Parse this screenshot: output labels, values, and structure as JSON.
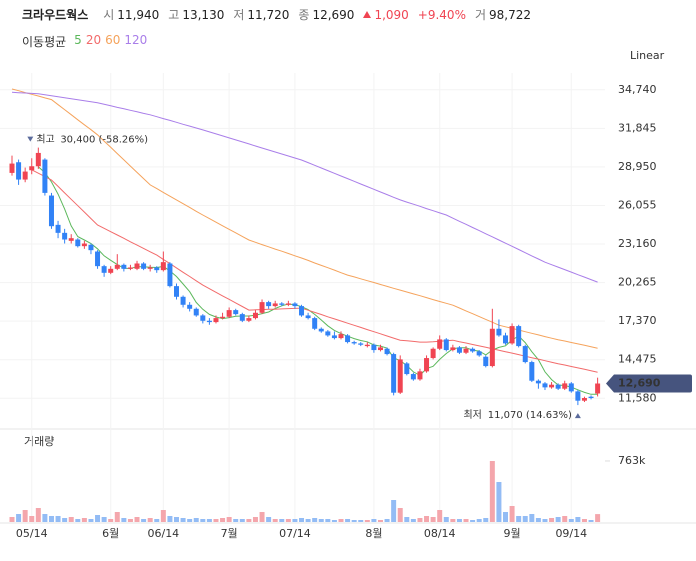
{
  "header": {
    "name": "크라우드웍스",
    "fields": [
      {
        "label": "시",
        "value": "11,940"
      },
      {
        "label": "고",
        "value": "13,130"
      },
      {
        "label": "저",
        "value": "11,720"
      },
      {
        "label": "종",
        "value": "12,690"
      }
    ],
    "change": "1,090",
    "change_pct": "+9.40%",
    "volume_label": "거",
    "volume": "98,722"
  },
  "chart_data": {
    "type": "candlestick",
    "ma_title": "이동평균",
    "scale_label": "Linear",
    "volume_title": "거래량",
    "up_color": "#f04452",
    "down_color": "#3182f6",
    "volume_up_color": "#f4a6ac",
    "volume_down_color": "#93bcf5",
    "grid": true,
    "categories": [
      null,
      null,
      null,
      "05/14",
      null,
      null,
      null,
      null,
      null,
      null,
      null,
      null,
      null,
      null,
      null,
      "6월",
      null,
      null,
      null,
      null,
      null,
      null,
      null,
      "06/14",
      null,
      null,
      null,
      null,
      null,
      null,
      null,
      null,
      null,
      "7월",
      null,
      null,
      null,
      null,
      null,
      null,
      null,
      null,
      null,
      "07/14",
      null,
      null,
      null,
      null,
      null,
      null,
      null,
      null,
      null,
      null,
      null,
      "8월",
      null,
      null,
      null,
      null,
      null,
      null,
      null,
      null,
      null,
      "08/14",
      null,
      null,
      null,
      null,
      null,
      null,
      null,
      null,
      null,
      null,
      "9월",
      null,
      null,
      null,
      null,
      null,
      null,
      null,
      null,
      "09/14",
      null,
      null,
      null,
      null
    ],
    "open": [
      28500,
      29300,
      28000,
      28700,
      29000,
      29500,
      26800,
      24600,
      24000,
      23400,
      23500,
      23000,
      23100,
      22600,
      21500,
      21000,
      21300,
      21600,
      21300,
      21300,
      21700,
      21300,
      21400,
      21200,
      21700,
      20000,
      19200,
      18600,
      18300,
      17800,
      17400,
      17300,
      17600,
      17700,
      18200,
      17900,
      17400,
      17600,
      18000,
      18800,
      18500,
      18700,
      18600,
      18700,
      18500,
      17800,
      17600,
      16800,
      16600,
      16300,
      16100,
      16300,
      15800,
      15700,
      15500,
      15600,
      15200,
      15300,
      14900,
      12000,
      14200,
      13400,
      13000,
      13600,
      14600,
      15300,
      16000,
      15200,
      15400,
      15000,
      15300,
      15100,
      14700,
      14000,
      16800,
      16300,
      15700,
      17000,
      15500,
      14300,
      12900,
      12700,
      12400,
      12600,
      12300,
      12700,
      12100,
      11400,
      11700,
      11940
    ],
    "high": [
      29800,
      29500,
      28900,
      29600,
      30400,
      29600,
      27000,
      24900,
      24300,
      23900,
      23600,
      23400,
      23200,
      22700,
      21600,
      21500,
      22400,
      21700,
      21600,
      21900,
      21800,
      21600,
      21500,
      22600,
      21800,
      20200,
      19300,
      18800,
      18400,
      17900,
      17600,
      17800,
      18000,
      18400,
      18300,
      18000,
      17800,
      18200,
      19000,
      18900,
      18900,
      18800,
      18900,
      18800,
      18600,
      18000,
      17700,
      16900,
      16700,
      16600,
      16600,
      16400,
      15900,
      15800,
      15800,
      15700,
      15600,
      15400,
      15000,
      14800,
      14300,
      13500,
      13800,
      14800,
      15400,
      16300,
      16100,
      15600,
      15500,
      15500,
      15400,
      15200,
      14800,
      18300,
      17500,
      16500,
      17200,
      17100,
      15600,
      14400,
      13000,
      12800,
      12800,
      12700,
      12900,
      12800,
      12200,
      11700,
      11800,
      13130
    ],
    "low": [
      28300,
      27600,
      27800,
      28400,
      28800,
      26800,
      24300,
      23600,
      23200,
      23200,
      22900,
      22800,
      22400,
      21300,
      20700,
      20900,
      21200,
      21100,
      21200,
      21200,
      21200,
      21100,
      21000,
      21100,
      19900,
      19000,
      18400,
      18100,
      17700,
      17200,
      17100,
      17200,
      17500,
      17600,
      17800,
      17300,
      17300,
      17500,
      17900,
      18300,
      18400,
      18500,
      18500,
      18300,
      17700,
      17500,
      16700,
      16500,
      16200,
      16000,
      16000,
      15700,
      15600,
      15500,
      15400,
      15000,
      15100,
      14800,
      11800,
      11900,
      13300,
      12900,
      12900,
      13500,
      14500,
      15200,
      15100,
      15100,
      14900,
      14900,
      15000,
      14700,
      13900,
      13900,
      16200,
      15600,
      15600,
      15400,
      14200,
      12800,
      12300,
      12200,
      12300,
      12200,
      12200,
      12000,
      11070,
      11300,
      11500,
      11720
    ],
    "close": [
      29200,
      28000,
      28600,
      29000,
      30000,
      27000,
      24500,
      24000,
      23500,
      23600,
      23000,
      23200,
      22700,
      21500,
      21000,
      21300,
      21600,
      21300,
      21400,
      21700,
      21300,
      21400,
      21200,
      21800,
      20000,
      19200,
      18600,
      18300,
      17800,
      17400,
      17300,
      17600,
      17700,
      18200,
      17900,
      17400,
      17600,
      18000,
      18800,
      18500,
      18700,
      18600,
      18700,
      18500,
      17800,
      17600,
      16800,
      16600,
      16300,
      16100,
      16400,
      15800,
      15700,
      15600,
      15600,
      15200,
      15400,
      14900,
      12000,
      14500,
      13400,
      13000,
      13600,
      14600,
      15300,
      16000,
      15200,
      15400,
      15000,
      15300,
      15100,
      14800,
      14000,
      16800,
      16300,
      15700,
      17000,
      15500,
      14300,
      12900,
      12700,
      12400,
      12600,
      12300,
      12700,
      12100,
      11400,
      11600,
      11600,
      12690
    ],
    "series": [
      {
        "name": "5",
        "color": "#5cb85c",
        "values": [
          null,
          null,
          null,
          null,
          28960,
          28520,
          27820,
          26900,
          25800,
          24520,
          23720,
          23460,
          23200,
          22800,
          22280,
          21940,
          21620,
          21340,
          21320,
          21460,
          21460,
          21420,
          21400,
          21480,
          21140,
          20720,
          20160,
          19580,
          18780,
          18260,
          17880,
          17680,
          17560,
          17640,
          17740,
          17760,
          17760,
          17820,
          17940,
          18060,
          18320,
          18520,
          18660,
          18600,
          18460,
          18240,
          17880,
          17460,
          17020,
          16680,
          16440,
          16240,
          16060,
          15920,
          15820,
          15580,
          15500,
          15340,
          14620,
          14400,
          14040,
          13560,
          13300,
          13820,
          13980,
          14500,
          14940,
          15300,
          15380,
          15380,
          15200,
          15120,
          14840,
          15200,
          15400,
          15520,
          15960,
          16260,
          15760,
          15080,
          14480,
          13560,
          12980,
          12580,
          12540,
          12420,
          12220,
          12020,
          11880,
          11880
        ]
      },
      {
        "name": "20",
        "color": "#f26b6b",
        "values": [
          null,
          null,
          null,
          28730,
          28480,
          28220,
          27970,
          27490,
          27000,
          26520,
          26040,
          25560,
          25070,
          24590,
          24340,
          24090,
          23840,
          23590,
          23330,
          23080,
          22830,
          22580,
          22330,
          22010,
          21690,
          21370,
          21040,
          20720,
          20400,
          20080,
          19810,
          19540,
          19270,
          19010,
          18740,
          18470,
          18200,
          18220,
          18240,
          18260,
          18270,
          18290,
          18310,
          18330,
          18350,
          18190,
          18030,
          17870,
          17700,
          17540,
          17380,
          17220,
          17060,
          16900,
          16740,
          16580,
          16420,
          16260,
          16100,
          15940,
          15900,
          15850,
          15800,
          15800,
          15820,
          15860,
          15900,
          15940,
          15830,
          15730,
          15620,
          15510,
          15410,
          15300,
          15190,
          15080,
          14970,
          14860,
          14740,
          14630,
          14520,
          14400,
          14290,
          14180,
          14080,
          13970,
          13860,
          13760,
          13650,
          13540
        ]
      },
      {
        "name": "60",
        "color": "#f5a35c",
        "values": [
          34800,
          34670,
          34530,
          34400,
          34270,
          34130,
          34000,
          33620,
          33250,
          32870,
          32490,
          32110,
          31740,
          31360,
          30890,
          30420,
          29950,
          29480,
          29010,
          28540,
          28070,
          27600,
          27320,
          27040,
          26750,
          26470,
          26190,
          25910,
          25620,
          25340,
          25070,
          24800,
          24530,
          24270,
          24000,
          23730,
          23460,
          23290,
          23120,
          22950,
          22780,
          22620,
          22450,
          22280,
          22110,
          21930,
          21740,
          21560,
          21380,
          21200,
          21010,
          20830,
          20690,
          20550,
          20410,
          20270,
          20120,
          19980,
          19840,
          19700,
          19560,
          19420,
          19280,
          19140,
          18990,
          18850,
          18710,
          18570,
          18360,
          18140,
          17930,
          17710,
          17500,
          17290,
          17070,
          16950,
          16830,
          16710,
          16580,
          16460,
          16340,
          16210,
          16090,
          15980,
          15880,
          15770,
          15660,
          15560,
          15450,
          15340
        ]
      },
      {
        "name": "120",
        "color": "#a97ee9",
        "values": [
          34550,
          34520,
          34500,
          34470,
          34440,
          34360,
          34290,
          34210,
          34140,
          34060,
          33990,
          33910,
          33840,
          33760,
          33650,
          33540,
          33420,
          33310,
          33200,
          33090,
          32970,
          32860,
          32720,
          32580,
          32440,
          32300,
          32150,
          32010,
          31870,
          31730,
          31580,
          31430,
          31280,
          31130,
          30980,
          30830,
          30680,
          30520,
          30370,
          30220,
          30070,
          29920,
          29770,
          29620,
          29470,
          29270,
          29070,
          28870,
          28670,
          28470,
          28270,
          28070,
          27870,
          27670,
          27470,
          27270,
          27070,
          26870,
          26670,
          26470,
          26310,
          26150,
          25990,
          25820,
          25660,
          25500,
          25340,
          25100,
          24870,
          24640,
          24400,
          24170,
          23930,
          23700,
          23460,
          23220,
          22990,
          22750,
          22510,
          22270,
          22040,
          21800,
          21610,
          21430,
          21240,
          21050,
          20860,
          20680,
          20490,
          20300
        ]
      }
    ],
    "ylim": [
      9500,
      36000
    ],
    "yticks": [
      {
        "value": 34740,
        "label": "34,740"
      },
      {
        "value": 31845,
        "label": "31,845"
      },
      {
        "value": 28950,
        "label": "28,950"
      },
      {
        "value": 26055,
        "label": "26,055"
      },
      {
        "value": 23160,
        "label": "23,160"
      },
      {
        "value": 20265,
        "label": "20,265"
      },
      {
        "value": 17370,
        "label": "17,370"
      },
      {
        "value": 14475,
        "label": "14,475"
      },
      {
        "value": 11580,
        "label": "11,580"
      }
    ],
    "last_price": {
      "value": 12690,
      "label": "12,690",
      "color": "#46547e"
    },
    "annotations": [
      {
        "label": "최고",
        "text": "30,400 (-58.26%)",
        "value": 30400
      },
      {
        "label": "최저",
        "text": "11,070 (14.63%)",
        "value": 11070
      }
    ],
    "annotation_color": "#5b6b9c",
    "volume": [
      62500,
      100000,
      150000,
      75000,
      175000,
      100000,
      75000,
      75000,
      50000,
      62500,
      37500,
      50000,
      37500,
      87500,
      62500,
      37500,
      125000,
      50000,
      37500,
      62500,
      37500,
      50000,
      37500,
      150000,
      75000,
      62500,
      50000,
      37500,
      50000,
      37500,
      37500,
      37500,
      50000,
      62500,
      37500,
      37500,
      37500,
      62500,
      125000,
      62500,
      37500,
      37500,
      37500,
      37500,
      50000,
      37500,
      50000,
      37500,
      37500,
      25000,
      37500,
      37500,
      25000,
      25000,
      25000,
      37500,
      25000,
      37500,
      275000,
      175000,
      62500,
      37500,
      50000,
      75000,
      62500,
      150000,
      62500,
      37500,
      37500,
      37500,
      25000,
      37500,
      50000,
      762500,
      500000,
      125000,
      200000,
      75000,
      75000,
      100000,
      50000,
      37500,
      50000,
      62500,
      75000,
      37500,
      62500,
      37500,
      25000,
      98722
    ],
    "volume_ylim": [
      0,
      1125000
    ],
    "volume_yticks": [
      {
        "value": 763000,
        "label": "763k"
      }
    ]
  }
}
